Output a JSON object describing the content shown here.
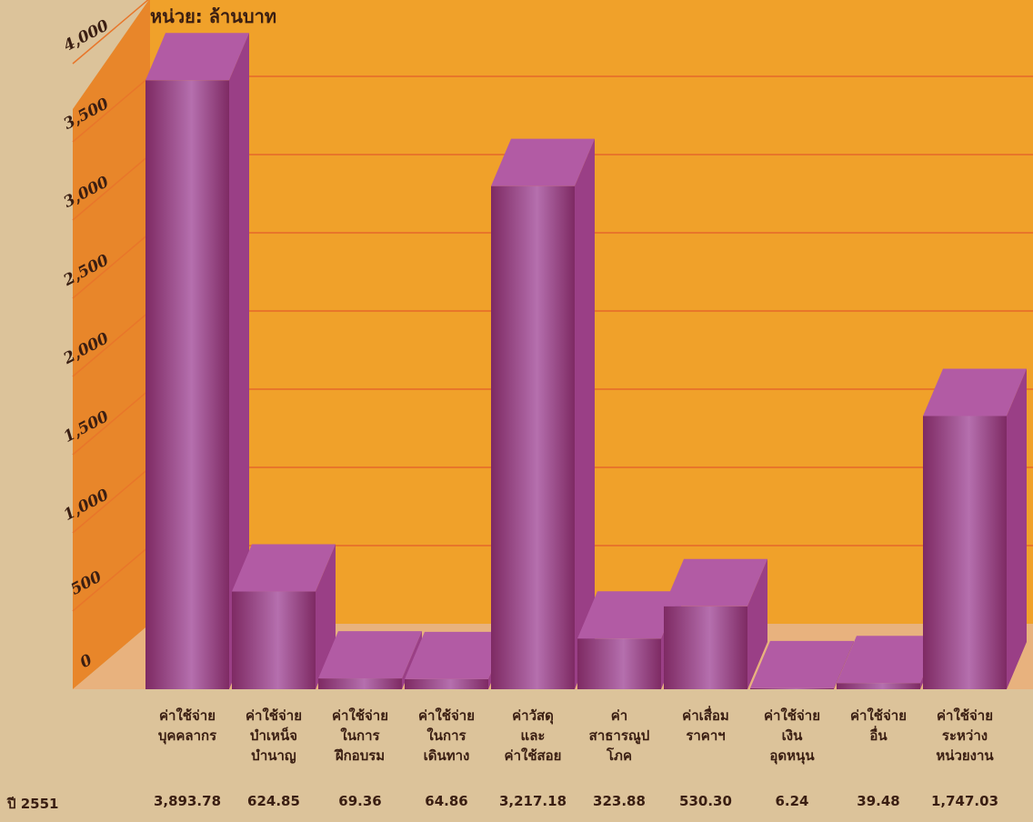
{
  "chart_data": {
    "type": "bar",
    "unit_label": "หน่วย: ล้านบาท",
    "year_label": "ปี 2551",
    "ylim": [
      0,
      4000
    ],
    "yticks": [
      "0",
      "500",
      "1,000",
      "1,500",
      "2,000",
      "2,500",
      "3,000",
      "3,500",
      "4,000"
    ],
    "categories": [
      [
        "ค่าใช้จ่าย",
        "บุคคลากร"
      ],
      [
        "ค่าใช้จ่าย",
        "บำเหน็จ",
        "บำนาญ"
      ],
      [
        "ค่าใช้จ่าย",
        "ในการ",
        "ฝึกอบรม"
      ],
      [
        "ค่าใช้จ่าย",
        "ในการ",
        "เดินทาง"
      ],
      [
        "ค่าวัสดุ",
        "และ",
        "ค่าใช้สอย"
      ],
      [
        "ค่า",
        "สาธารณูป",
        "โภค"
      ],
      [
        "ค่าเสื่อม",
        "ราคาฯ"
      ],
      [
        "ค่าใช้จ่าย",
        "เงิน",
        "อุดหนุน"
      ],
      [
        "ค่าใช้จ่าย",
        "อื่น"
      ],
      [
        "ค่าใช้จ่าย",
        "ระหว่าง",
        "หน่วยงาน"
      ]
    ],
    "values": [
      3893.78,
      624.85,
      69.36,
      64.86,
      3217.18,
      323.88,
      530.3,
      6.24,
      39.48,
      1747.03
    ],
    "value_labels": [
      "3,893.78",
      "624.85",
      "69.36",
      "64.86",
      "3,217.18",
      "323.88",
      "530.30",
      "6.24",
      "39.48",
      "1,747.03"
    ],
    "grid": true,
    "colors": {
      "background": "#dcc39a",
      "wall": "#f0a12a",
      "side_wall": "#e8862a",
      "floor": "#e8b27e",
      "gridline": "#e8762a",
      "bar": "#7e2a63",
      "bar_highlight": "#b56fae",
      "bar_top": "#b25ba4",
      "bar_side": "#9a3f86",
      "text": "#3a1e12"
    }
  }
}
